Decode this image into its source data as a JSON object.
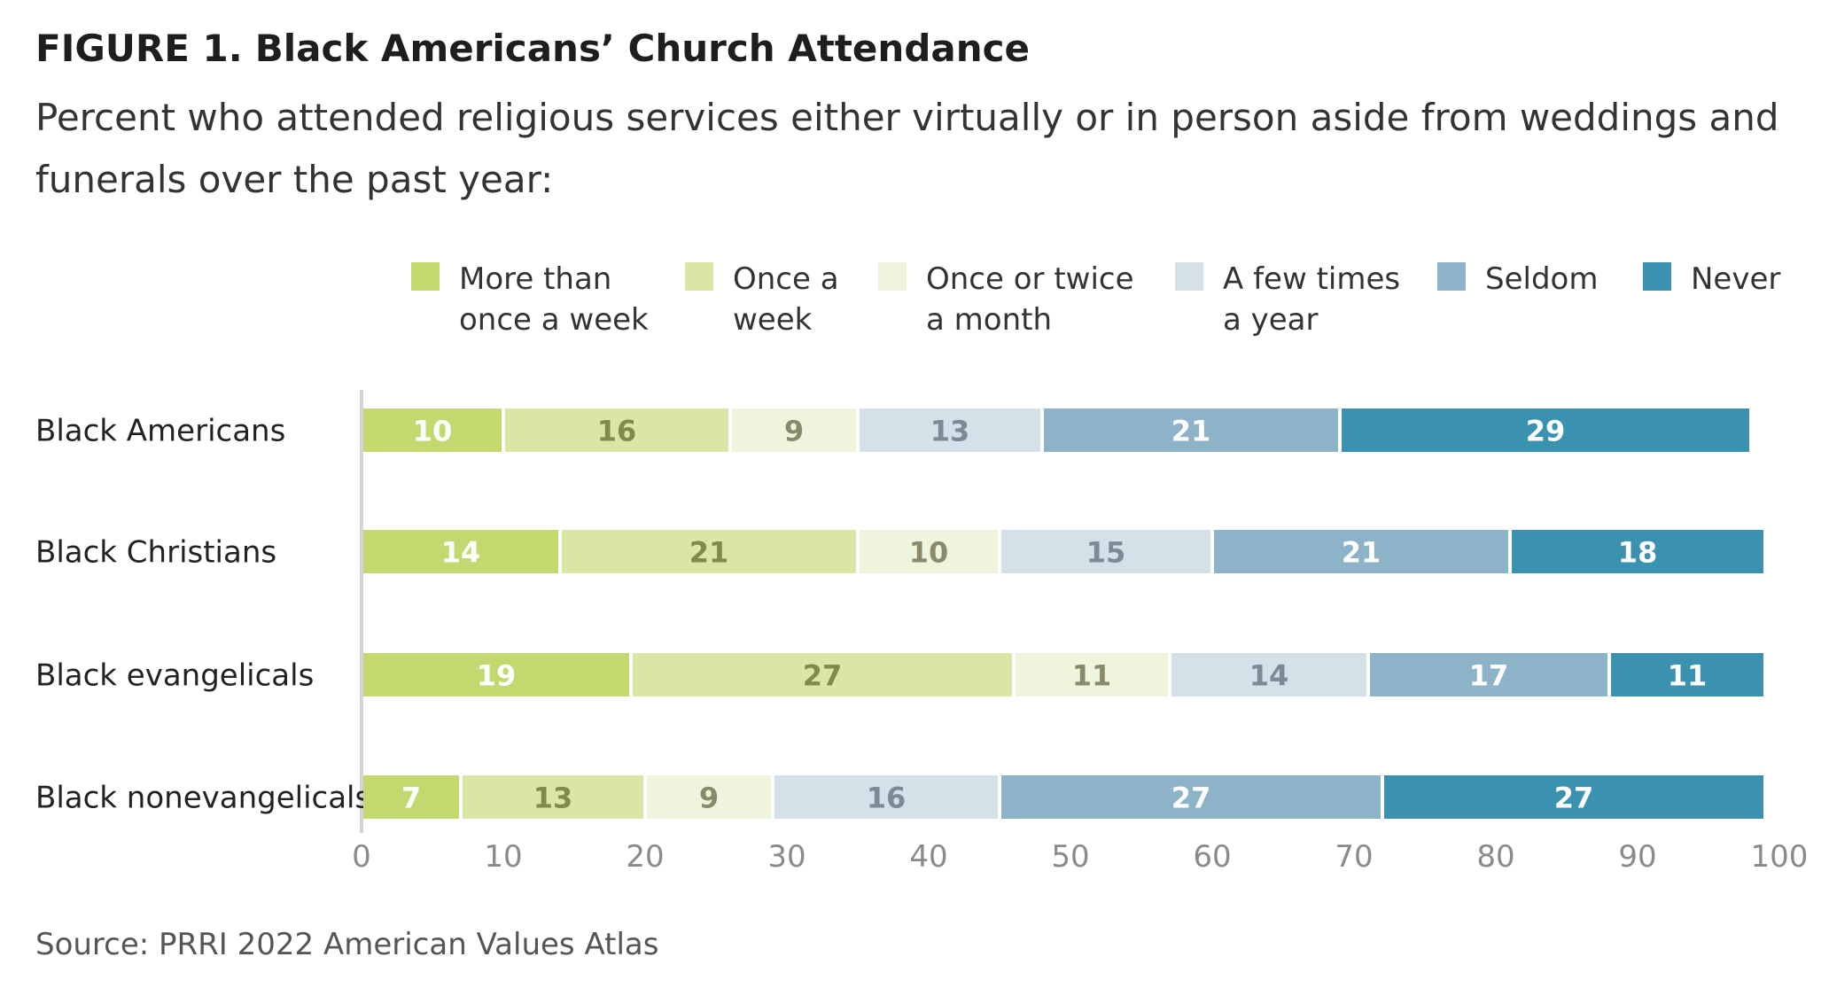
{
  "figure": {
    "number": "FIGURE 1.",
    "title": "Black Americans’ Church Attendance",
    "subtitle": "Percent who attended religious services either virtually or in person aside from weddings and funerals over the past year:",
    "source": "Source: PRRI 2022 American Values Atlas"
  },
  "chart_data": {
    "type": "bar",
    "orientation": "horizontal",
    "stacked": true,
    "categories": [
      "Black Americans",
      "Black Christians",
      "Black evangelicals",
      "Black nonevangelicals"
    ],
    "series": [
      {
        "name": "More than\nonce a week",
        "color": "#c2d96f",
        "label_color": "#ffffff",
        "values": [
          10,
          14,
          19,
          7
        ]
      },
      {
        "name": "Once a\nweek",
        "color": "#d9e6a6",
        "label_color": "#7f8a4e",
        "values": [
          16,
          21,
          27,
          13
        ]
      },
      {
        "name": "Once or twice\na month",
        "color": "#eff5dd",
        "label_color": "#8a8a6a",
        "values": [
          9,
          10,
          11,
          9
        ]
      },
      {
        "name": "A few times\na year",
        "color": "#d5e1e8",
        "label_color": "#7b8a94",
        "values": [
          13,
          15,
          14,
          16
        ]
      },
      {
        "name": "Seldom",
        "color": "#8cb3c8",
        "label_color": "#ffffff",
        "values": [
          21,
          21,
          17,
          27
        ]
      },
      {
        "name": "Never",
        "color": "#3a92b0",
        "label_color": "#ffffff",
        "values": [
          29,
          18,
          11,
          27
        ]
      }
    ],
    "xlim": [
      0,
      100
    ],
    "xticks": [
      0,
      10,
      20,
      30,
      40,
      50,
      60,
      70,
      80,
      90,
      100
    ],
    "grid": false,
    "legend_position": "top"
  }
}
